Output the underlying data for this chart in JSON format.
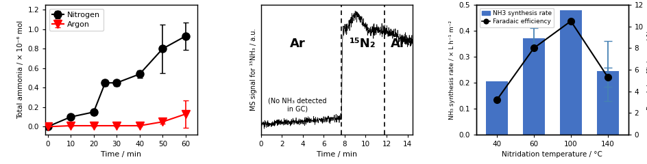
{
  "panel1": {
    "nitrogen_x": [
      0,
      10,
      20,
      25,
      30,
      40,
      50,
      60
    ],
    "nitrogen_y": [
      0.0,
      0.1,
      0.15,
      0.45,
      0.45,
      0.54,
      0.8,
      0.93
    ],
    "nitrogen_yerr": [
      0.01,
      0.02,
      0.03,
      0.03,
      0.03,
      0.04,
      0.25,
      0.14
    ],
    "argon_x": [
      0,
      10,
      20,
      30,
      40,
      50,
      60
    ],
    "argon_y": [
      0.0,
      0.01,
      0.01,
      0.01,
      0.01,
      0.05,
      0.13
    ],
    "argon_yerr": [
      0.01,
      0.01,
      0.01,
      0.01,
      0.01,
      0.02,
      0.14
    ],
    "ylabel": "Total ammonia / × 10⁻⁶ mol",
    "xlabel": "Time / min",
    "ylim": [
      -0.08,
      1.25
    ],
    "xlim": [
      -1,
      65
    ],
    "xticks": [
      0,
      10,
      20,
      30,
      40,
      50,
      60
    ],
    "yticks": [
      0.0,
      0.2,
      0.4,
      0.6,
      0.8,
      1.0,
      1.2
    ],
    "legend_nitrogen": "Nitrogen",
    "legend_argon": "Argon",
    "nitrogen_color": "black",
    "argon_color": "red"
  },
  "panel2": {
    "xlabel": "Time / min",
    "ylabel": "MS signal for ¹⁵NH₃ / a.u.",
    "xlim": [
      0,
      14.5
    ],
    "xticks": [
      0,
      2,
      4,
      6,
      8,
      10,
      12,
      14
    ],
    "vline1": 7.7,
    "vline2": 11.8,
    "label_ar1": "Ar",
    "label_n2": "¹⁵N₂",
    "label_ar2": "Ar",
    "label_note": "(No NH₃ detected\nin GC)",
    "signal_color": "black",
    "baseline_low": 0.35,
    "baseline_high": 0.68,
    "noise_low": 0.006,
    "noise_high": 0.01
  },
  "panel3": {
    "temperatures": [
      40,
      60,
      100,
      140
    ],
    "nh3_rates": [
      0.205,
      0.37,
      0.48,
      0.245
    ],
    "nh3_yerr": [
      0.0,
      0.04,
      0.0,
      0.115
    ],
    "faradaic": [
      3.2,
      8.0,
      10.5,
      5.3
    ],
    "faradaic_yerr": [
      0.0,
      0.0,
      0.0,
      0.9
    ],
    "bar_color": "#4472C4",
    "line_color": "black",
    "xlabel": "Nitridation temperature / °C",
    "ylabel_left": "NH₃ synthesis rate / × L h⁻¹ m⁻²",
    "ylabel_right": "Faradaic efficiency / %",
    "ylim_left": [
      0,
      0.5
    ],
    "ylim_right": [
      0,
      12
    ],
    "yticks_left": [
      0.0,
      0.1,
      0.2,
      0.3,
      0.4,
      0.5
    ],
    "yticks_right": [
      0,
      2,
      4,
      6,
      8,
      10,
      12
    ],
    "legend_bar": "NH3 synthesis rate",
    "legend_line": "Faradaic efficiency"
  }
}
